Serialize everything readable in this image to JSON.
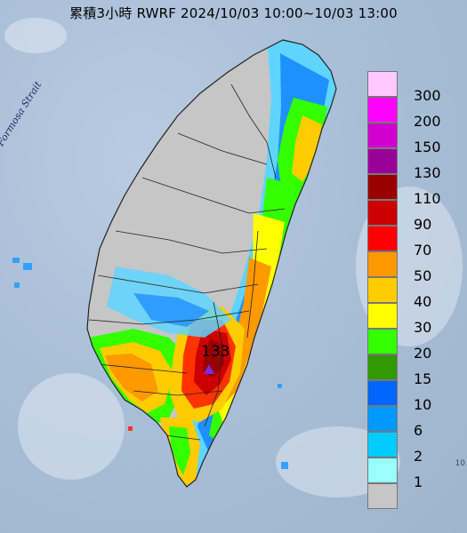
{
  "map": {
    "title": "累積3小時 RWRF 2024/10/03 10:00~10/03 13:00",
    "water_label": "Formosa Strait",
    "max_value_label": "133",
    "max_marker_icon": "triangle-max-marker-icon",
    "corner_text": "10",
    "colors": {
      "sea": "#a9bfd8",
      "land_gray": "#c6c6c6",
      "border": "#222222"
    }
  },
  "legend": {
    "items": [
      {
        "label": "300",
        "color": "#ffc8ff"
      },
      {
        "label": "200",
        "color": "#ff00ff"
      },
      {
        "label": "150",
        "color": "#d000d0"
      },
      {
        "label": "130",
        "color": "#990099"
      },
      {
        "label": "110",
        "color": "#990000"
      },
      {
        "label": "90",
        "color": "#cc0000"
      },
      {
        "label": "70",
        "color": "#ff0000"
      },
      {
        "label": "50",
        "color": "#ff9900"
      },
      {
        "label": "40",
        "color": "#ffcc00"
      },
      {
        "label": "30",
        "color": "#ffff00"
      },
      {
        "label": "20",
        "color": "#33ff00"
      },
      {
        "label": "15",
        "color": "#339900"
      },
      {
        "label": "10",
        "color": "#0066ff"
      },
      {
        "label": "6",
        "color": "#0099ff"
      },
      {
        "label": "2",
        "color": "#00ccff"
      },
      {
        "label": "1",
        "color": "#99ffff"
      },
      {
        "label": "",
        "color": "#c6c6c6"
      }
    ]
  }
}
